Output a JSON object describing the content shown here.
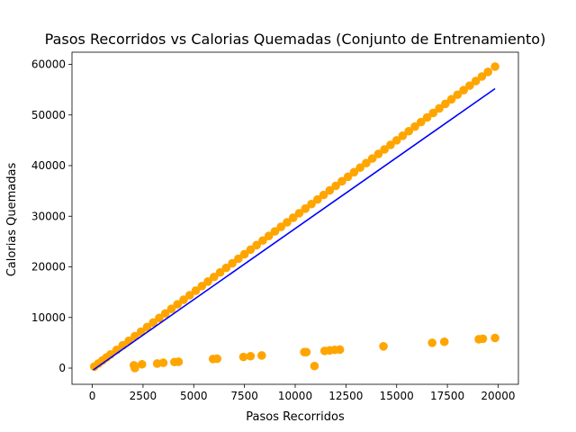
{
  "chart_data": {
    "type": "scatter",
    "title": "Pasos Recorridos vs Calorias Quemadas  (Conjunto de Entrenamiento)",
    "xlabel": "Pasos Recorridos",
    "ylabel": "Calorias Quemadas",
    "xlim": [
      -1000,
      21000
    ],
    "ylim": [
      -3200,
      62400
    ],
    "xticks": [
      0,
      2500,
      5000,
      7500,
      10000,
      12500,
      15000,
      17500,
      20000
    ],
    "yticks": [
      0,
      10000,
      20000,
      30000,
      40000,
      50000,
      60000
    ],
    "grid": false,
    "colors": {
      "points": "#ffa500",
      "fit_line": "#0000ff"
    },
    "series": [
      {
        "kind": "points",
        "x": [
          100,
          300,
          500,
          700,
          900,
          1200,
          1500,
          1800,
          2100,
          2400,
          2700,
          3000,
          3300,
          3600,
          3900,
          4200,
          4500,
          4800,
          5100,
          5400,
          5700,
          6000,
          6300,
          6600,
          6900,
          7200,
          7500,
          7800,
          8100,
          8400,
          8700,
          9000,
          9300,
          9600,
          9900,
          10200,
          10500,
          10800,
          11100,
          11400,
          11700,
          12000,
          12300,
          12600,
          12900,
          13200,
          13500,
          13800,
          14100,
          14400,
          14700,
          15000,
          15300,
          15600,
          15900,
          16200,
          16500,
          16800,
          17100,
          17400,
          17700,
          18000,
          18300,
          18600,
          18900,
          19200,
          19500,
          19850
        ],
        "y": [
          300,
          900,
          1500,
          2100,
          2700,
          3600,
          4500,
          5400,
          6300,
          7200,
          8100,
          9000,
          9900,
          10800,
          11700,
          12600,
          13500,
          14400,
          15300,
          16200,
          17100,
          18000,
          18900,
          19800,
          20700,
          21600,
          22500,
          23400,
          24300,
          25200,
          26100,
          27000,
          27900,
          28800,
          29700,
          30600,
          31500,
          32400,
          33300,
          34200,
          35100,
          36000,
          36900,
          37800,
          38700,
          39600,
          40500,
          41400,
          42300,
          43200,
          44100,
          45000,
          45900,
          46800,
          47700,
          48600,
          49500,
          50400,
          51300,
          52200,
          53100,
          54000,
          54900,
          55800,
          56700,
          57600,
          58500,
          59550
        ]
      },
      {
        "kind": "points",
        "x": [
          2050,
          2100,
          2450,
          3200,
          3500,
          4050,
          4250,
          5950,
          6150,
          7450,
          7800,
          8350,
          10450,
          10550,
          10950,
          11450,
          11700,
          11950,
          12200,
          14350,
          16750,
          17350,
          19050,
          19250,
          19850
        ],
        "y": [
          550,
          0,
          750,
          900,
          1050,
          1200,
          1250,
          1800,
          1850,
          2200,
          2350,
          2500,
          3150,
          3150,
          400,
          3400,
          3500,
          3600,
          3650,
          4300,
          5000,
          5200,
          5700,
          5800,
          5950
        ]
      },
      {
        "kind": "line",
        "x": [
          50,
          19850
        ],
        "y": [
          -350,
          55200
        ]
      }
    ]
  }
}
